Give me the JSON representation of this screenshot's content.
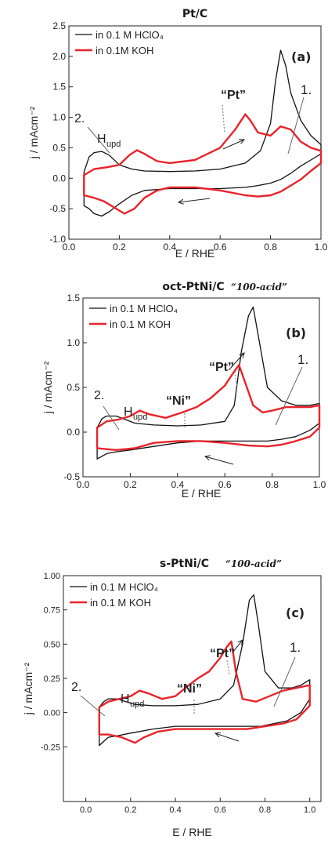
{
  "chart_data": [
    {
      "type": "line",
      "panel_label": "(a)",
      "title": "Pt/C",
      "subtitle": "",
      "xlabel": "E / RHE",
      "ylabel": "j / mAcm⁻²",
      "xlim": [
        0.0,
        1.0
      ],
      "ylim": [
        -1.0,
        2.5
      ],
      "x_ticks": [
        "0.0",
        "0.2",
        "0.4",
        "0.6",
        "0.8",
        "1.0"
      ],
      "y_ticks": [
        "-1.0",
        "-0.5",
        "0.0",
        "0.5",
        "1.0",
        "1.5",
        "2.0",
        "2.5"
      ],
      "annotations": {
        "region_2": "2.",
        "hupd": "H",
        "hupd_sub": "upd",
        "pt": "“Pt”",
        "region_1": "1.",
        "ni": ""
      },
      "series": [
        {
          "name": "in 0.1 M HClO₄",
          "color": "#111111",
          "x": [
            0.06,
            0.08,
            0.1,
            0.13,
            0.16,
            0.2,
            0.25,
            0.3,
            0.4,
            0.5,
            0.6,
            0.7,
            0.76,
            0.8,
            0.82,
            0.84,
            0.86,
            0.88,
            0.92,
            0.96,
            1.0,
            1.0,
            0.96,
            0.92,
            0.88,
            0.84,
            0.8,
            0.75,
            0.7,
            0.6,
            0.5,
            0.4,
            0.3,
            0.25,
            0.2,
            0.16,
            0.13,
            0.1,
            0.08,
            0.06
          ],
          "y": [
            0.1,
            0.35,
            0.42,
            0.44,
            0.38,
            0.22,
            0.15,
            0.12,
            0.11,
            0.12,
            0.15,
            0.25,
            0.45,
            0.9,
            1.6,
            2.1,
            1.85,
            1.4,
            0.95,
            0.7,
            0.55,
            0.4,
            0.3,
            0.2,
            0.08,
            -0.02,
            -0.08,
            -0.12,
            -0.15,
            -0.17,
            -0.17,
            -0.17,
            -0.2,
            -0.28,
            -0.42,
            -0.55,
            -0.62,
            -0.58,
            -0.5,
            -0.45
          ]
        },
        {
          "name": "in 0.1M KOH",
          "color": "#e8242a",
          "x": [
            0.06,
            0.1,
            0.15,
            0.2,
            0.24,
            0.27,
            0.3,
            0.35,
            0.4,
            0.5,
            0.6,
            0.66,
            0.7,
            0.72,
            0.75,
            0.8,
            0.84,
            0.88,
            0.92,
            0.96,
            1.0,
            1.0,
            0.96,
            0.92,
            0.88,
            0.84,
            0.8,
            0.75,
            0.7,
            0.6,
            0.5,
            0.4,
            0.35,
            0.3,
            0.26,
            0.22,
            0.18,
            0.14,
            0.1,
            0.06
          ],
          "y": [
            0.05,
            0.15,
            0.18,
            0.22,
            0.38,
            0.46,
            0.4,
            0.28,
            0.25,
            0.3,
            0.5,
            0.8,
            1.05,
            0.95,
            0.75,
            0.7,
            0.85,
            0.8,
            0.6,
            0.5,
            0.45,
            0.25,
            0.12,
            -0.02,
            -0.12,
            -0.22,
            -0.28,
            -0.3,
            -0.28,
            -0.2,
            -0.15,
            -0.15,
            -0.2,
            -0.32,
            -0.5,
            -0.58,
            -0.48,
            -0.38,
            -0.32,
            -0.28
          ]
        }
      ]
    },
    {
      "type": "line",
      "panel_label": "(b)",
      "title": "oct-PtNi/C",
      "subtitle": "“100-acid”",
      "xlabel": "E / RHE",
      "ylabel": "j / mAcm⁻²",
      "xlim": [
        0.0,
        1.0
      ],
      "ylim": [
        -0.5,
        1.5
      ],
      "x_ticks": [
        "0.0",
        "0.2",
        "0.4",
        "0.6",
        "0.8",
        "1.0"
      ],
      "y_ticks": [
        "-0.5",
        "0.0",
        "0.5",
        "1.0",
        "1.5"
      ],
      "annotations": {
        "region_2": "2.",
        "hupd": "H",
        "hupd_sub": "upd",
        "pt": "“Pt”",
        "region_1": "1.",
        "ni": "“Ni”"
      },
      "series": [
        {
          "name": "in 0.1 M HClO₄",
          "color": "#111111",
          "x": [
            0.06,
            0.08,
            0.1,
            0.14,
            0.18,
            0.22,
            0.3,
            0.4,
            0.5,
            0.6,
            0.64,
            0.67,
            0.7,
            0.72,
            0.74,
            0.78,
            0.84,
            0.9,
            0.96,
            1.0,
            1.0,
            0.96,
            0.9,
            0.84,
            0.78,
            0.72,
            0.66,
            0.6,
            0.5,
            0.4,
            0.3,
            0.2,
            0.14,
            0.1,
            0.06
          ],
          "y": [
            0.05,
            0.15,
            0.18,
            0.18,
            0.14,
            0.1,
            0.08,
            0.07,
            0.08,
            0.12,
            0.3,
            0.9,
            1.3,
            1.4,
            1.1,
            0.5,
            0.35,
            0.3,
            0.3,
            0.32,
            0.1,
            0.02,
            -0.05,
            -0.08,
            -0.1,
            -0.1,
            -0.1,
            -0.1,
            -0.1,
            -0.12,
            -0.16,
            -0.2,
            -0.22,
            -0.24,
            -0.3
          ]
        },
        {
          "name": "in 0.1 M KOH",
          "color": "#e8242a",
          "x": [
            0.06,
            0.1,
            0.15,
            0.2,
            0.24,
            0.28,
            0.35,
            0.42,
            0.48,
            0.54,
            0.6,
            0.64,
            0.66,
            0.68,
            0.72,
            0.76,
            0.8,
            0.86,
            0.92,
            0.96,
            1.0,
            1.0,
            0.96,
            0.9,
            0.84,
            0.78,
            0.7,
            0.6,
            0.5,
            0.4,
            0.3,
            0.22,
            0.14,
            0.06
          ],
          "y": [
            0.05,
            0.12,
            0.14,
            0.18,
            0.24,
            0.2,
            0.16,
            0.22,
            0.28,
            0.38,
            0.52,
            0.68,
            0.75,
            0.6,
            0.3,
            0.22,
            0.24,
            0.28,
            0.28,
            0.28,
            0.3,
            0.05,
            -0.05,
            -0.1,
            -0.14,
            -0.16,
            -0.15,
            -0.12,
            -0.1,
            -0.1,
            -0.12,
            -0.18,
            -0.2,
            -0.18
          ]
        }
      ]
    },
    {
      "type": "line",
      "panel_label": "(c)",
      "title": "s-PtNi/C",
      "subtitle": "“100-acid”",
      "xlabel": "E / RHE",
      "ylabel": "j / mAcm⁻²",
      "xlim": [
        -0.1,
        1.05
      ],
      "ylim": [
        -0.38,
        1.0
      ],
      "x_ticks": [
        "0.0",
        "0.2",
        "0.4",
        "0.6",
        "0.8",
        "1.0"
      ],
      "y_ticks": [
        "-0.25",
        "0.00",
        "0.25",
        "0.50",
        "0.75",
        "1.00"
      ],
      "annotations": {
        "region_2": "2.",
        "hupd": "H",
        "hupd_sub": "upd",
        "pt": "“Pt”",
        "region_1": "1.",
        "ni": "“Ni”"
      },
      "series": [
        {
          "name": "in 0.1 M HClO₄",
          "color": "#111111",
          "x": [
            0.06,
            0.08,
            0.1,
            0.14,
            0.18,
            0.22,
            0.3,
            0.4,
            0.5,
            0.6,
            0.66,
            0.7,
            0.73,
            0.75,
            0.77,
            0.8,
            0.86,
            0.92,
            0.96,
            1.0,
            1.0,
            0.96,
            0.9,
            0.84,
            0.78,
            0.72,
            0.66,
            0.6,
            0.5,
            0.4,
            0.3,
            0.2,
            0.14,
            0.1,
            0.06
          ],
          "y": [
            0.04,
            0.08,
            0.1,
            0.1,
            0.08,
            0.06,
            0.05,
            0.05,
            0.06,
            0.1,
            0.2,
            0.5,
            0.82,
            0.86,
            0.65,
            0.3,
            0.18,
            0.18,
            0.2,
            0.24,
            0.1,
            0.0,
            -0.06,
            -0.08,
            -0.1,
            -0.1,
            -0.1,
            -0.1,
            -0.1,
            -0.1,
            -0.12,
            -0.15,
            -0.17,
            -0.18,
            -0.24
          ]
        },
        {
          "name": "in 0.1 M KOH",
          "color": "#e8242a",
          "x": [
            0.06,
            0.1,
            0.15,
            0.2,
            0.24,
            0.28,
            0.34,
            0.4,
            0.46,
            0.5,
            0.55,
            0.6,
            0.63,
            0.65,
            0.67,
            0.7,
            0.76,
            0.82,
            0.88,
            0.94,
            1.0,
            1.0,
            0.94,
            0.88,
            0.8,
            0.72,
            0.64,
            0.56,
            0.48,
            0.4,
            0.32,
            0.26,
            0.22,
            0.16,
            0.1,
            0.06
          ],
          "y": [
            0.04,
            0.08,
            0.1,
            0.12,
            0.16,
            0.14,
            0.1,
            0.12,
            0.2,
            0.25,
            0.3,
            0.4,
            0.48,
            0.52,
            0.3,
            0.1,
            0.08,
            0.12,
            0.16,
            0.18,
            0.2,
            0.05,
            -0.05,
            -0.08,
            -0.1,
            -0.12,
            -0.12,
            -0.12,
            -0.12,
            -0.12,
            -0.14,
            -0.18,
            -0.22,
            -0.18,
            -0.16,
            -0.16
          ]
        }
      ]
    }
  ]
}
